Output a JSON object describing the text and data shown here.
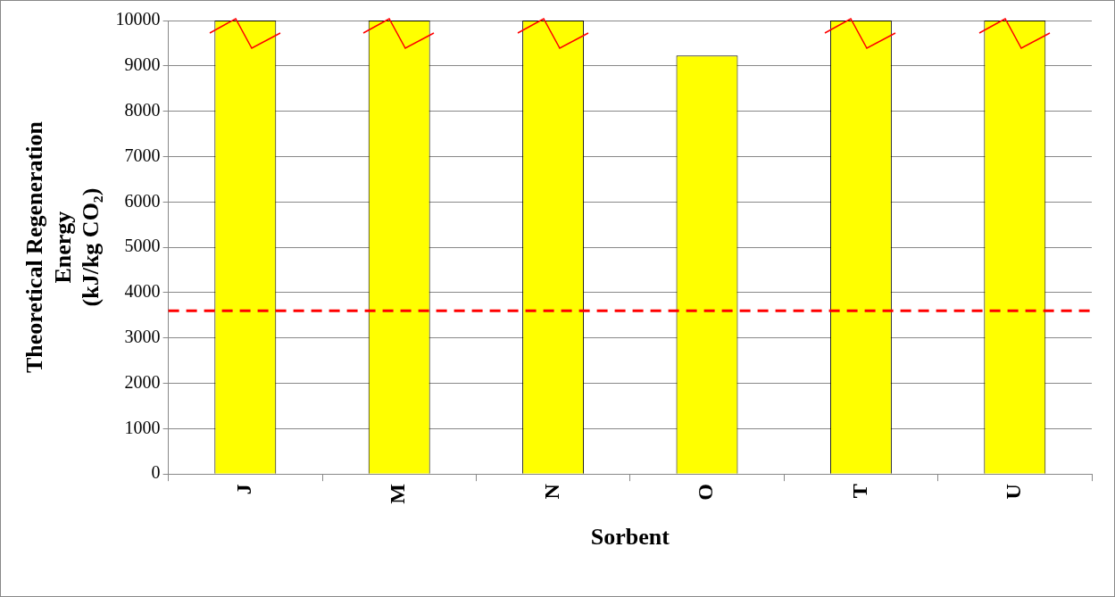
{
  "chart_data": {
    "type": "bar",
    "xlabel": "Sorbent",
    "ylabel": "Theoretical Regeneration Energy (kJ/kg CO₂)",
    "categories": [
      "J",
      "M",
      "N",
      "O",
      "T",
      "U"
    ],
    "values": [
      10000,
      10000,
      10000,
      9230,
      10000,
      10000
    ],
    "color": "#ffff00",
    "ylim": [
      0,
      10000
    ],
    "yticks": [
      0,
      1000,
      2000,
      3000,
      4000,
      5000,
      6000,
      7000,
      8000,
      9000,
      10000
    ],
    "grid": "y",
    "ref_lines": [
      {
        "axis": "y",
        "value": 3600,
        "color": "#ff0000",
        "line_style": "dashed"
      }
    ]
  }
}
